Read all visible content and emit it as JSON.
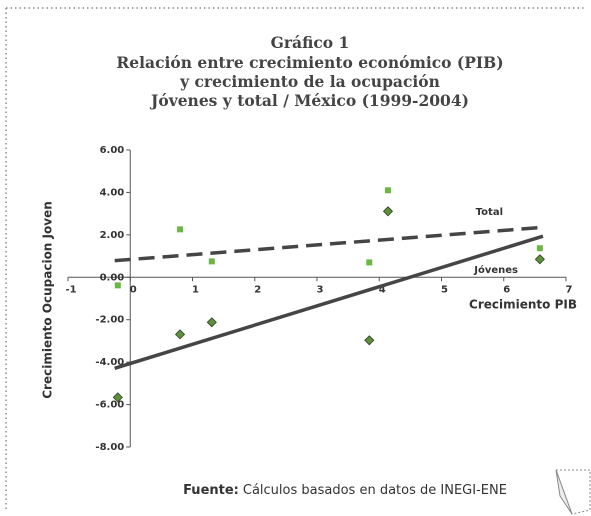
{
  "chart_data": {
    "type": "scatter",
    "title_lines": [
      "Gráfico 1",
      "Relación entre crecimiento económico (PIB)",
      "y crecimiento de la ocupación",
      "Jóvenes y total / México (1999-2004)"
    ],
    "x_label": "Crecimiento PIB",
    "y_label": "Crecimiento Ocupacion Joven",
    "annotations": [
      "Total",
      "Jóvenes"
    ],
    "source_label": "Fuente:",
    "source_text": "Cálculos basados en datos de INEGI-ENE",
    "xlim": [
      -1,
      7
    ],
    "xticks": [
      -1,
      0,
      1,
      2,
      3,
      4,
      5,
      6,
      7
    ],
    "ylim": [
      -8,
      6
    ],
    "yticks": [
      {
        "value": -8,
        "label": "-8.00"
      },
      {
        "value": -6,
        "label": "-6.00"
      },
      {
        "value": -4,
        "label": "-4.00"
      },
      {
        "value": -2,
        "label": "-2.00"
      },
      {
        "value": 0,
        "label": "0.00"
      },
      {
        "value": 2,
        "label": "2.00"
      },
      {
        "value": 4,
        "label": "4.00"
      },
      {
        "value": 6,
        "label": "6.00"
      }
    ],
    "series": [
      {
        "name": "Total",
        "color": "#6cb646",
        "marker": "square",
        "trend": "dashed",
        "x": [
          -0.2,
          0.8,
          1.31,
          3.84,
          4.14,
          6.58
        ],
        "values": [
          -0.38,
          2.26,
          0.75,
          0.7,
          4.1,
          1.37
        ]
      },
      {
        "name": "Jóvenes",
        "color": "#5e8f3c",
        "marker": "diamond",
        "trend": "solid",
        "x": [
          -0.2,
          0.8,
          1.31,
          3.84,
          4.14,
          6.58
        ],
        "values": [
          -5.66,
          -2.69,
          -2.12,
          -2.97,
          3.11,
          0.85
        ]
      }
    ]
  }
}
